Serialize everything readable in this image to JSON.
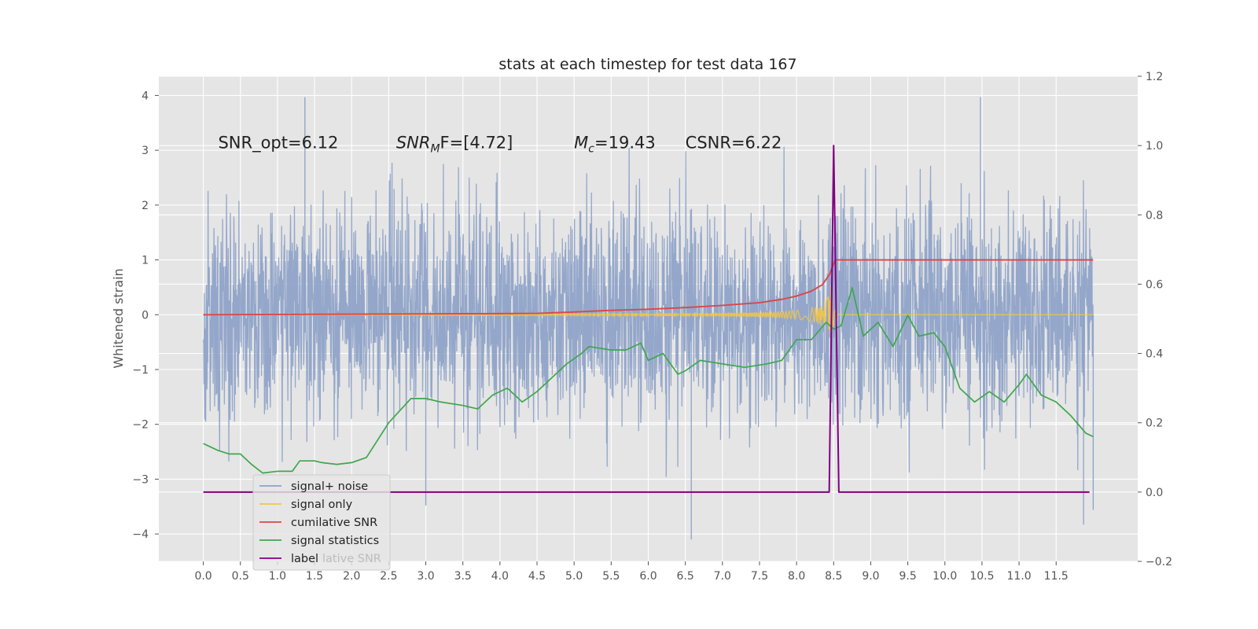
{
  "chart_data": {
    "type": "line",
    "title": "stats at each timestep for test data 167",
    "xlabel": "",
    "ylabel": "Whitened strain",
    "y2label": "",
    "xlim": [
      -0.6,
      12.6
    ],
    "ylim": [
      -4.5,
      4.35
    ],
    "y2lim": [
      -0.2,
      1.2
    ],
    "grid": true,
    "x_ticks": [
      "0.0",
      "0.5",
      "1.0",
      "1.5",
      "2.0",
      "2.5",
      "3.0",
      "3.5",
      "4.0",
      "4.5",
      "5.0",
      "5.5",
      "6.0",
      "6.5",
      "7.0",
      "7.5",
      "8.0",
      "8.5",
      "9.0",
      "9.5",
      "10.0",
      "10.5",
      "11.0",
      "11.5"
    ],
    "y_ticks": [
      "4",
      "3",
      "2",
      "1",
      "0",
      "−1",
      "−2",
      "−3",
      "−4"
    ],
    "y2_ticks": [
      "1.2",
      "1.0",
      "0.8",
      "0.6",
      "0.4",
      "0.2",
      "0.0",
      "−0.2"
    ],
    "annotations": [
      {
        "text": "SNR_opt=6.12",
        "x": 0.2,
        "y": 3.15
      },
      {
        "text_prefix": "SNR",
        "text_sub": "M",
        "text_suffix": "F=[4.72]",
        "x": 2.6,
        "y": 3.15
      },
      {
        "text_prefix": "M",
        "text_sub": "c",
        "text_suffix": "=19.43",
        "x": 5.0,
        "y": 3.15
      },
      {
        "text": "CSNR=6.22",
        "x": 6.5,
        "y": 3.15
      }
    ],
    "legend": {
      "placement": "lower-left",
      "entries": [
        {
          "label": "signal+ noise",
          "color": "#8da2c8"
        },
        {
          "label": "signal only",
          "color": "#f2c744"
        },
        {
          "label": "cumilative SNR",
          "color": "#d9474b"
        },
        {
          "label": "signal statistics",
          "color": "#3fa64d"
        },
        {
          "label": "label",
          "color": "#800080"
        }
      ],
      "ghost_text": "lative SNR"
    },
    "series": [
      {
        "name": "signal+ noise",
        "axis": "left",
        "color": "#8da2c8",
        "kind": "noise",
        "x_range": [
          0.0,
          12.0
        ],
        "envelope": {
          "typical_min": -2.0,
          "typical_max": 2.1,
          "min": -4.1,
          "max": 3.97
        },
        "spikes": [
          [
            1.37,
            3.97
          ],
          [
            10.48,
            3.97
          ],
          [
            6.58,
            -4.1
          ],
          [
            11.87,
            -3.83
          ],
          [
            3.0,
            -3.48
          ],
          [
            12.0,
            -3.56
          ]
        ]
      },
      {
        "name": "signal only",
        "axis": "left",
        "color": "#f2c744",
        "kind": "chirp",
        "merger_x": 8.47,
        "peak_amplitude": 0.62
      },
      {
        "name": "cumilative SNR",
        "axis": "left",
        "color": "#d9474b",
        "x": [
          0.0,
          1.0,
          2.0,
          3.0,
          4.0,
          4.5,
          5.0,
          5.5,
          6.0,
          6.5,
          7.0,
          7.5,
          7.8,
          8.0,
          8.2,
          8.35,
          8.45,
          8.5,
          8.52,
          12.0
        ],
        "y": [
          0.0,
          0.005,
          0.01,
          0.015,
          0.02,
          0.025,
          0.05,
          0.08,
          0.1,
          0.13,
          0.17,
          0.22,
          0.28,
          0.34,
          0.43,
          0.55,
          0.75,
          0.93,
          1.0,
          1.0
        ]
      },
      {
        "name": "signal statistics",
        "axis": "right",
        "color": "#3fa64d",
        "x": [
          0.0,
          0.1,
          0.2,
          0.35,
          0.5,
          0.65,
          0.8,
          1.0,
          1.2,
          1.3,
          1.5,
          1.6,
          1.8,
          2.0,
          2.2,
          2.5,
          2.8,
          3.0,
          3.2,
          3.5,
          3.7,
          3.9,
          4.1,
          4.3,
          4.5,
          4.7,
          4.9,
          5.1,
          5.2,
          5.5,
          5.7,
          5.9,
          6.0,
          6.2,
          6.4,
          6.5,
          6.7,
          7.0,
          7.3,
          7.6,
          7.8,
          8.0,
          8.2,
          8.4,
          8.5,
          8.6,
          8.75,
          8.9,
          9.1,
          9.3,
          9.5,
          9.65,
          9.85,
          10.0,
          10.2,
          10.4,
          10.6,
          10.8,
          11.0,
          11.1,
          11.3,
          11.5,
          11.7,
          11.9,
          12.0
        ],
        "y": [
          0.14,
          0.13,
          0.12,
          0.11,
          0.11,
          0.08,
          0.055,
          0.06,
          0.06,
          0.09,
          0.09,
          0.085,
          0.08,
          0.085,
          0.1,
          0.2,
          0.27,
          0.27,
          0.26,
          0.25,
          0.24,
          0.28,
          0.3,
          0.26,
          0.29,
          0.33,
          0.37,
          0.4,
          0.42,
          0.41,
          0.41,
          0.43,
          0.38,
          0.4,
          0.34,
          0.35,
          0.38,
          0.37,
          0.36,
          0.37,
          0.38,
          0.44,
          0.44,
          0.49,
          0.47,
          0.48,
          0.59,
          0.45,
          0.49,
          0.42,
          0.51,
          0.45,
          0.46,
          0.42,
          0.3,
          0.26,
          0.29,
          0.26,
          0.31,
          0.34,
          0.28,
          0.26,
          0.22,
          0.17,
          0.16
        ]
      },
      {
        "name": "label",
        "axis": "right",
        "color": "#800080",
        "x": [
          0.0,
          8.44,
          8.5,
          8.57,
          11.95
        ],
        "y": [
          0.0,
          0.0,
          1.0,
          0.0,
          0.0
        ]
      }
    ]
  }
}
